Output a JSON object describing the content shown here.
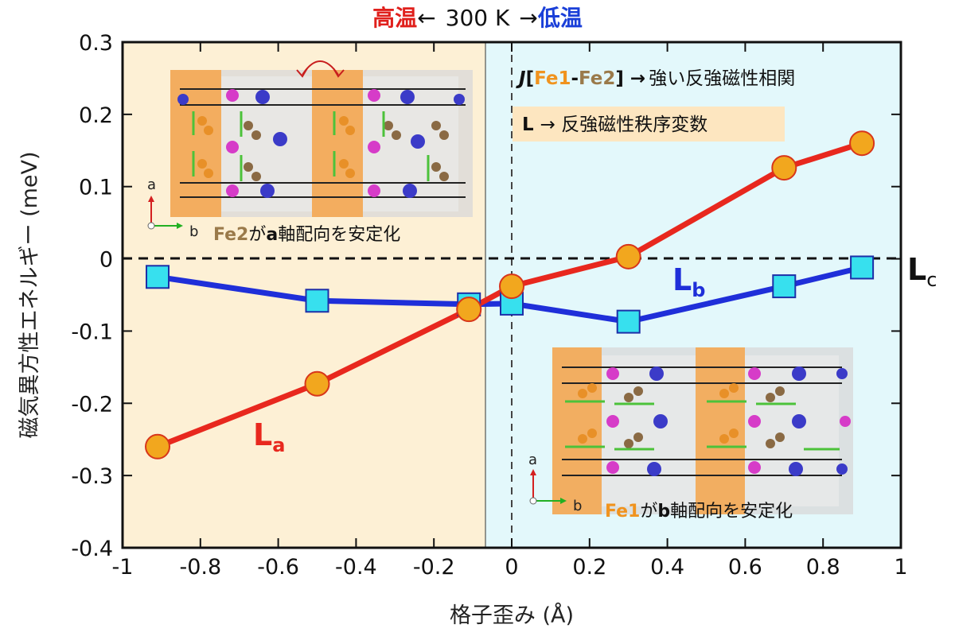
{
  "header": {
    "high_temp": "高温",
    "left_arrow": "←",
    "temperature": "300 K",
    "right_arrow": "→",
    "low_temp": "低温"
  },
  "annotations": {
    "coupling_J": "J",
    "coupling_open": "[",
    "coupling_fe1": "Fe1",
    "coupling_dash": "-",
    "coupling_fe2": "Fe2",
    "coupling_close": "] →",
    "coupling_desc": "強い反強磁性相関",
    "order_L": "L",
    "order_desc": "→ 反強磁性秩序変数",
    "inset_top_fe": "Fe2",
    "inset_top_ga": "が",
    "inset_top_axis": "a",
    "inset_top_rest": "軸配向を安定化",
    "inset_bottom_fe": "Fe1",
    "inset_bottom_ga": "が",
    "inset_bottom_axis": "b",
    "inset_bottom_rest": "軸配向を安定化",
    "axis_a": "a",
    "axis_b": "b",
    "lc_main": "L",
    "lc_sub": "c"
  },
  "colors": {
    "high_temp": "#e0201c",
    "low_temp": "#1a3fd8",
    "left_region": "#fdf0d5",
    "right_region": "#e3f8fb",
    "series_a_line": "#e8281e",
    "series_a_marker": "#f2a71e",
    "series_b_line": "#1f2fd9",
    "series_b_marker": "#37e0ee",
    "fe1_orange": "#f0931e",
    "fe2_brown": "#9a7a4a"
  },
  "chart_data": {
    "type": "line",
    "xlabel": "格子歪み (Å)",
    "ylabel": "磁気異方性エネルギー (meV)",
    "xlim": [
      -1,
      1
    ],
    "ylim": [
      -0.4,
      0.3
    ],
    "xticks": [
      "-1",
      "-0.8",
      "-0.6",
      "-0.4",
      "-0.2",
      "0",
      "0.2",
      "0.4",
      "0.6",
      "0.8",
      "1"
    ],
    "yticks": [
      "0.3",
      "0.2",
      "0.1",
      "0",
      "-0.1",
      "-0.2",
      "-0.3",
      "-0.4"
    ],
    "reference_line_y": 0,
    "region_boundary_x": -0.07,
    "series": [
      {
        "name": "La",
        "label_main": "L",
        "label_sub": "a",
        "marker": "circle",
        "x": [
          -0.91,
          -0.5,
          -0.11,
          0.0,
          0.3,
          0.7,
          0.9
        ],
        "y": [
          -0.26,
          -0.173,
          -0.07,
          -0.038,
          0.003,
          0.126,
          0.16
        ]
      },
      {
        "name": "Lb",
        "label_main": "L",
        "label_sub": "b",
        "marker": "square",
        "x": [
          -0.91,
          -0.5,
          -0.11,
          0.0,
          0.3,
          0.7,
          0.9
        ],
        "y": [
          -0.025,
          -0.058,
          -0.063,
          -0.062,
          -0.087,
          -0.038,
          -0.012
        ]
      }
    ]
  }
}
